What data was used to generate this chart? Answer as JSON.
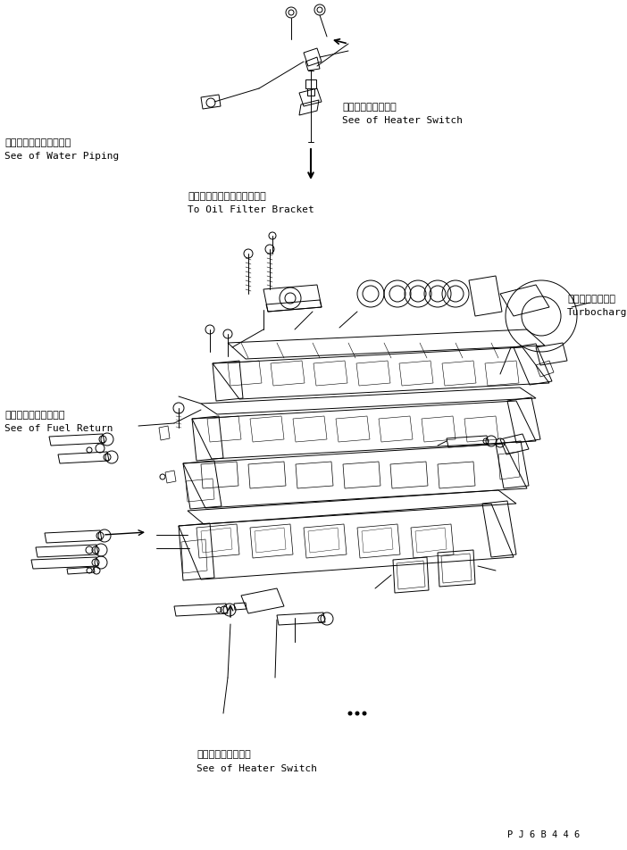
{
  "figsize": [
    7.02,
    9.53
  ],
  "dpi": 100,
  "bg_color": "#ffffff",
  "lc": "#000000",
  "lw": 0.7,
  "texts": {
    "heater_switch_top_jp": "ヒータスイッチ参照",
    "heater_switch_top_en": "See of Heater Switch",
    "water_piping_jp": "ウォータパイピング参照",
    "water_piping_en": "See of Water Piping",
    "oil_filter_jp": "オイルフィルタブラケットへ",
    "oil_filter_en": "To Oil Filter Bracket",
    "turbo_jp": "ターボチャージャ",
    "turbo_en": "Turbocharger",
    "fuel_return_jp": "フェエルリターン参照",
    "fuel_return_en": "See of Fuel Return",
    "heater_switch_bot_jp": "ヒータスイッチ参照",
    "heater_switch_bot_en": "See of Heater Switch",
    "part_number": "P J 6 B 4 4 6"
  }
}
